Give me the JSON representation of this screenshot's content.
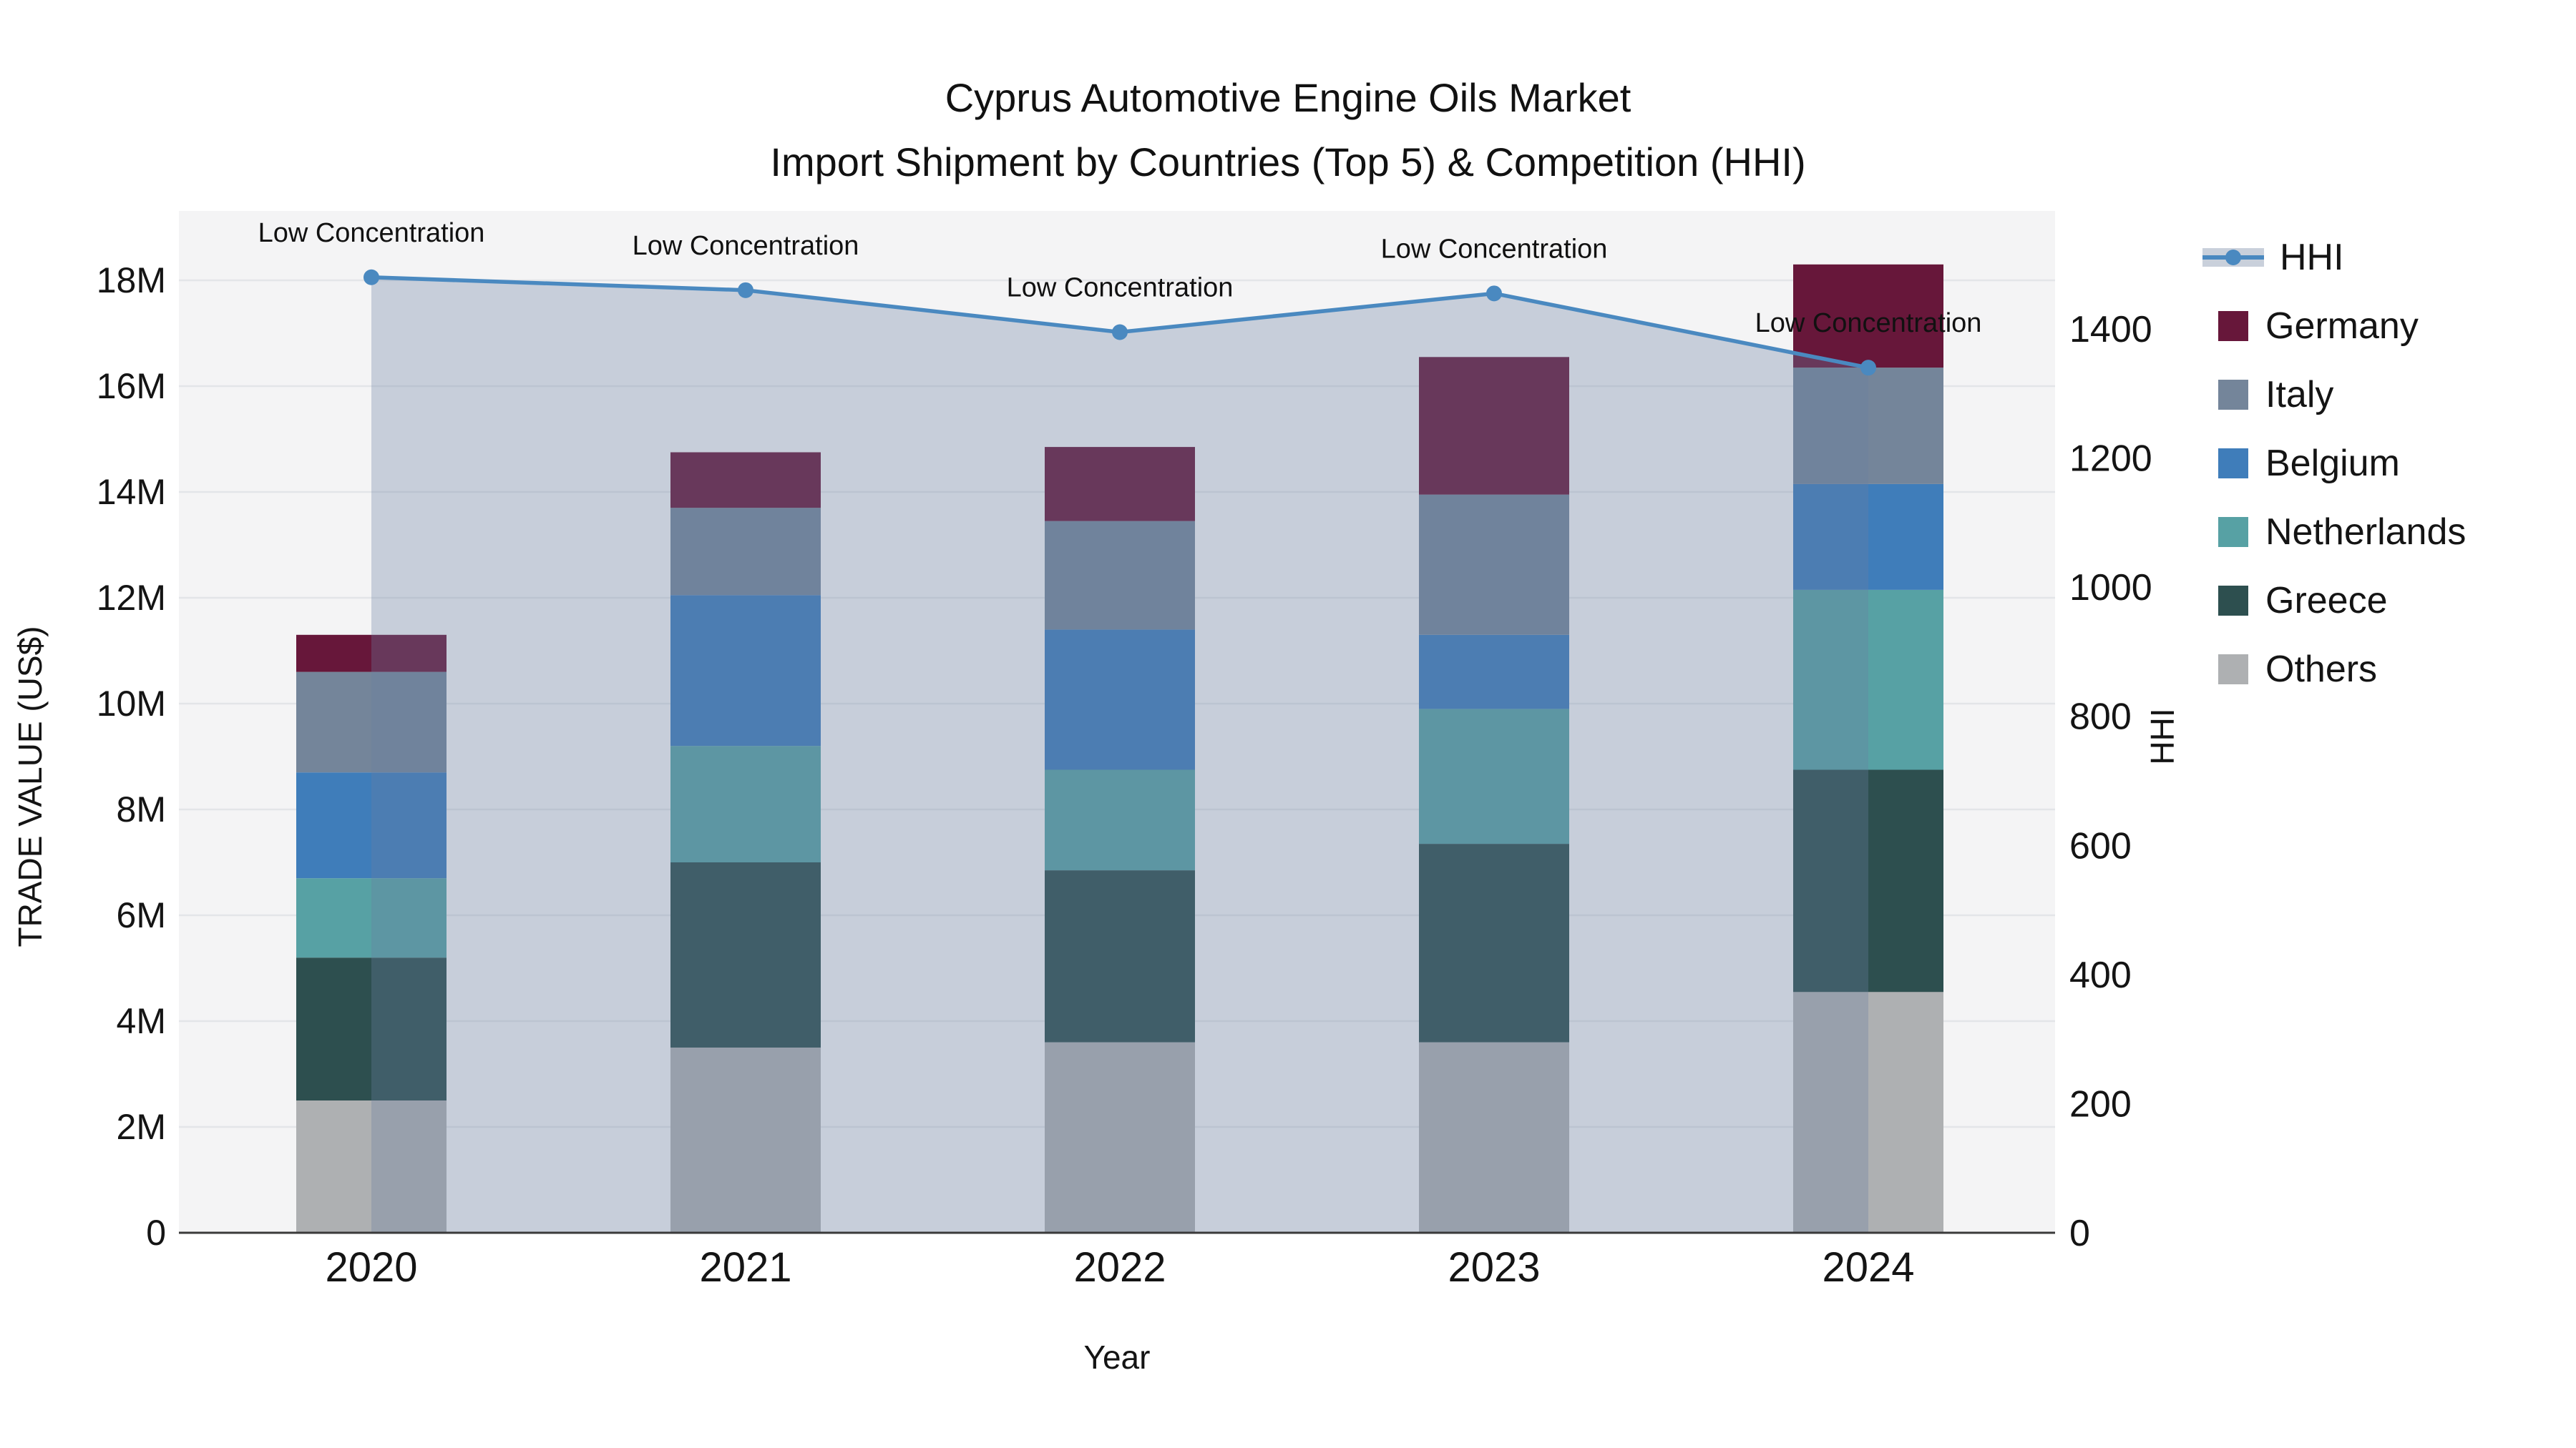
{
  "chart_data": {
    "type": "bar",
    "subtype": "stacked-bar-with-line-area-overlay",
    "title": "Cyprus Automotive Engine Oils Market",
    "subtitle": "Import Shipment by Countries (Top 5) & Competition (HHI)",
    "xlabel": "Year",
    "ylabel_left": "TRADE VALUE (US$)",
    "ylabel_right": "HHI",
    "unit": "US$ millions",
    "categories": [
      "2020",
      "2021",
      "2022",
      "2023",
      "2024"
    ],
    "series": [
      {
        "name": "Germany",
        "color": "#67173a",
        "values": [
          0.7,
          1.05,
          1.4,
          2.6,
          1.95
        ]
      },
      {
        "name": "Italy",
        "color": "#74859a",
        "values": [
          1.9,
          1.65,
          2.05,
          2.65,
          2.2
        ]
      },
      {
        "name": "Belgium",
        "color": "#3f7dba",
        "values": [
          2.0,
          2.85,
          2.65,
          1.4,
          2.0
        ]
      },
      {
        "name": "Netherlands",
        "color": "#57a1a4",
        "values": [
          1.5,
          2.2,
          1.9,
          2.55,
          3.4
        ]
      },
      {
        "name": "Greece",
        "color": "#2d4f4f",
        "values": [
          2.7,
          3.5,
          3.25,
          3.75,
          4.2
        ]
      },
      {
        "name": "Others",
        "color": "#aeb0b2",
        "values": [
          2.5,
          3.5,
          3.6,
          3.6,
          4.55
        ]
      }
    ],
    "stack_order_bottom_to_top": [
      "Others",
      "Greece",
      "Netherlands",
      "Belgium",
      "Italy",
      "Germany"
    ],
    "totals": [
      11.3,
      14.75,
      14.85,
      16.55,
      18.3
    ],
    "line_series": {
      "name": "HHI",
      "axis": "right",
      "color": "#4a89c0",
      "fill_color": "rgba(107,129,163,0.32)",
      "marker": "circle",
      "values": [
        1480,
        1460,
        1395,
        1455,
        1340
      ]
    },
    "annotations": [
      {
        "x": "2020",
        "text": "Low Concentration"
      },
      {
        "x": "2021",
        "text": "Low Concentration"
      },
      {
        "x": "2022",
        "text": "Low Concentration"
      },
      {
        "x": "2023",
        "text": "Low Concentration"
      },
      {
        "x": "2024",
        "text": "Low Concentration"
      }
    ],
    "y_left": {
      "range_millions": [
        0,
        19.3
      ],
      "ticks": [
        {
          "value": 0,
          "label": "0"
        },
        {
          "value": 2,
          "label": "2M"
        },
        {
          "value": 4,
          "label": "4M"
        },
        {
          "value": 6,
          "label": "6M"
        },
        {
          "value": 8,
          "label": "8M"
        },
        {
          "value": 10,
          "label": "10M"
        },
        {
          "value": 12,
          "label": "12M"
        },
        {
          "value": 14,
          "label": "14M"
        },
        {
          "value": 16,
          "label": "16M"
        },
        {
          "value": 18,
          "label": "18M"
        }
      ]
    },
    "y_right": {
      "range": [
        0,
        1580
      ],
      "ticks": [
        {
          "value": 0,
          "label": "0"
        },
        {
          "value": 200,
          "label": "200"
        },
        {
          "value": 400,
          "label": "400"
        },
        {
          "value": 600,
          "label": "600"
        },
        {
          "value": 800,
          "label": "800"
        },
        {
          "value": 1000,
          "label": "1000"
        },
        {
          "value": 1200,
          "label": "1200"
        },
        {
          "value": 1400,
          "label": "1400"
        }
      ]
    },
    "legend": [
      {
        "label": "HHI",
        "type": "line"
      },
      {
        "label": "Germany",
        "type": "swatch"
      },
      {
        "label": "Italy",
        "type": "swatch"
      },
      {
        "label": "Belgium",
        "type": "swatch"
      },
      {
        "label": "Netherlands",
        "type": "swatch"
      },
      {
        "label": "Greece",
        "type": "swatch"
      },
      {
        "label": "Others",
        "type": "swatch"
      }
    ],
    "grid": true,
    "legend_position": "right"
  },
  "colors": {
    "figure_bg": "#ffffff",
    "plot_bg": "#f4f4f5",
    "grid": "#e3e5e8",
    "axis_line": "#3a3a3a",
    "text": "#141414"
  }
}
